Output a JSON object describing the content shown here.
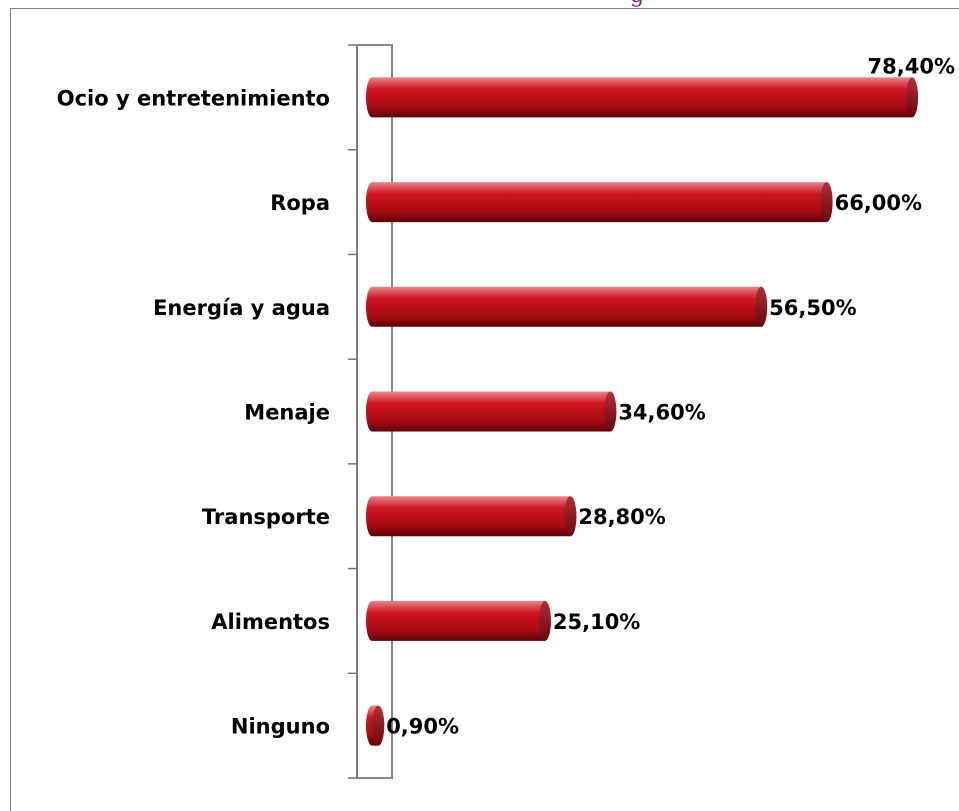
{
  "chart_data": {
    "type": "bar",
    "orientation": "horizontal",
    "title": "g",
    "categories": [
      "Ocio y entretenimiento",
      "Ropa",
      "Energía y agua",
      "Menaje",
      "Transporte",
      "Alimentos",
      "Ninguno"
    ],
    "values": [
      78.4,
      66.0,
      56.5,
      34.6,
      28.8,
      25.1,
      0.9
    ],
    "value_labels": [
      "78,40%",
      "66,00%",
      "56,50%",
      "34,60%",
      "28,80%",
      "25,10%",
      "0,90%"
    ],
    "color": "#c0101a"
  }
}
